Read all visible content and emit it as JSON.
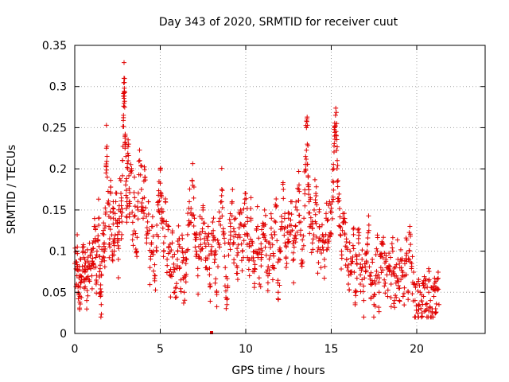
{
  "chart_data": {
    "type": "scatter",
    "title": "Day 343 of 2020, SRMTID for receiver cuut",
    "xlabel": "GPS time / hours",
    "ylabel": "SRMTID / TECUs",
    "xlim": [
      0,
      24
    ],
    "ylim": [
      0,
      0.35
    ],
    "xticks": [
      0,
      5,
      10,
      15,
      20
    ],
    "yticks": [
      0,
      0.05,
      0.1,
      0.15,
      0.2,
      0.25,
      0.3,
      0.35
    ],
    "xtick_labels": [
      "0",
      "5",
      "10",
      "15",
      "20"
    ],
    "ytick_labels": [
      "0",
      "0.05",
      "0.1",
      "0.15",
      "0.2",
      "0.25",
      "0.3",
      "0.35"
    ],
    "grid": true,
    "marker_color": "#e00000",
    "marker": "plus",
    "x_range_of_data": [
      0,
      21.3
    ],
    "series": [
      {
        "points": [
          [
            0.0,
            0.085
          ],
          [
            0.1,
            0.06
          ],
          [
            0.15,
            0.105
          ],
          [
            0.2,
            0.05
          ],
          [
            0.25,
            0.07
          ],
          [
            0.3,
            0.045
          ],
          [
            0.35,
            0.09
          ],
          [
            0.4,
            0.065
          ],
          [
            0.5,
            0.1
          ],
          [
            0.55,
            0.055
          ],
          [
            0.6,
            0.075
          ],
          [
            0.7,
            0.04
          ],
          [
            0.75,
            0.08
          ],
          [
            0.8,
            0.065
          ],
          [
            0.9,
            0.095
          ],
          [
            1.0,
            0.07
          ],
          [
            1.05,
            0.11
          ],
          [
            1.1,
            0.085
          ],
          [
            1.2,
            0.13
          ],
          [
            1.25,
            0.06
          ],
          [
            1.3,
            0.1
          ],
          [
            1.4,
            0.14
          ],
          [
            1.45,
            0.075
          ],
          [
            1.5,
            0.045
          ],
          [
            1.55,
            0.035
          ],
          [
            1.6,
            0.09
          ],
          [
            1.7,
            0.12
          ],
          [
            1.75,
            0.1
          ],
          [
            1.8,
            0.145
          ],
          [
            1.85,
            0.225
          ],
          [
            1.9,
            0.19
          ],
          [
            2.0,
            0.13
          ],
          [
            2.05,
            0.105
          ],
          [
            2.1,
            0.17
          ],
          [
            2.2,
            0.095
          ],
          [
            2.25,
            0.14
          ],
          [
            2.3,
            0.115
          ],
          [
            2.4,
            0.16
          ],
          [
            2.5,
            0.13
          ],
          [
            2.55,
            0.09
          ],
          [
            2.6,
            0.155
          ],
          [
            2.7,
            0.17
          ],
          [
            2.75,
            0.12
          ],
          [
            2.8,
            0.21
          ],
          [
            2.85,
            0.265
          ],
          [
            2.88,
            0.31
          ],
          [
            2.9,
            0.305
          ],
          [
            2.92,
            0.275
          ],
          [
            2.95,
            0.24
          ],
          [
            3.0,
            0.185
          ],
          [
            3.05,
            0.16
          ],
          [
            3.1,
            0.2
          ],
          [
            3.15,
            0.23
          ],
          [
            3.2,
            0.145
          ],
          [
            3.3,
            0.195
          ],
          [
            3.4,
            0.12
          ],
          [
            3.5,
            0.165
          ],
          [
            3.6,
            0.1
          ],
          [
            3.7,
            0.15
          ],
          [
            3.8,
            0.21
          ],
          [
            3.9,
            0.175
          ],
          [
            4.0,
            0.14
          ],
          [
            4.1,
            0.19
          ],
          [
            4.2,
            0.11
          ],
          [
            4.3,
            0.16
          ],
          [
            4.4,
            0.08
          ],
          [
            4.5,
            0.13
          ],
          [
            4.6,
            0.1
          ],
          [
            4.7,
            0.07
          ],
          [
            4.8,
            0.12
          ],
          [
            4.9,
            0.15
          ],
          [
            5.0,
            0.2
          ],
          [
            5.05,
            0.17
          ],
          [
            5.1,
            0.14
          ],
          [
            5.2,
            0.11
          ],
          [
            5.3,
            0.16
          ],
          [
            5.4,
            0.09
          ],
          [
            5.5,
            0.13
          ],
          [
            5.6,
            0.07
          ],
          [
            5.7,
            0.11
          ],
          [
            5.8,
            0.08
          ],
          [
            5.9,
            0.055
          ],
          [
            6.0,
            0.09
          ],
          [
            6.1,
            0.115
          ],
          [
            6.2,
            0.065
          ],
          [
            6.3,
            0.1
          ],
          [
            6.4,
            0.05
          ],
          [
            6.5,
            0.085
          ],
          [
            6.6,
            0.12
          ],
          [
            6.7,
            0.16
          ],
          [
            6.8,
            0.135
          ],
          [
            6.9,
            0.18
          ],
          [
            7.0,
            0.14
          ],
          [
            7.1,
            0.1
          ],
          [
            7.2,
            0.07
          ],
          [
            7.3,
            0.12
          ],
          [
            7.4,
            0.09
          ],
          [
            7.5,
            0.15
          ],
          [
            7.6,
            0.11
          ],
          [
            7.7,
            0.08
          ],
          [
            7.8,
            0.13
          ],
          [
            7.9,
            0.06
          ],
          [
            8.0,
            0.1
          ],
          [
            8.1,
            0.125
          ],
          [
            8.2,
            0.09
          ],
          [
            8.3,
            0.05
          ],
          [
            8.4,
            0.11
          ],
          [
            8.5,
            0.14
          ],
          [
            8.6,
            0.175
          ],
          [
            8.7,
            0.12
          ],
          [
            8.8,
            0.08
          ],
          [
            8.9,
            0.035
          ],
          [
            9.0,
            0.095
          ],
          [
            9.1,
            0.13
          ],
          [
            9.2,
            0.16
          ],
          [
            9.3,
            0.11
          ],
          [
            9.4,
            0.14
          ],
          [
            9.5,
            0.08
          ],
          [
            9.6,
            0.12
          ],
          [
            9.7,
            0.15
          ],
          [
            9.8,
            0.1
          ],
          [
            9.9,
            0.13
          ],
          [
            10.0,
            0.17
          ],
          [
            10.1,
            0.12
          ],
          [
            10.2,
            0.09
          ],
          [
            10.3,
            0.14
          ],
          [
            10.4,
            0.11
          ],
          [
            10.5,
            0.075
          ],
          [
            10.6,
            0.1
          ],
          [
            10.7,
            0.13
          ],
          [
            10.8,
            0.06
          ],
          [
            10.9,
            0.09
          ],
          [
            11.0,
            0.12
          ],
          [
            11.1,
            0.15
          ],
          [
            11.2,
            0.095
          ],
          [
            11.3,
            0.07
          ],
          [
            11.4,
            0.11
          ],
          [
            11.5,
            0.14
          ],
          [
            11.6,
            0.08
          ],
          [
            11.7,
            0.12
          ],
          [
            11.8,
            0.155
          ],
          [
            11.9,
            0.05
          ],
          [
            12.0,
            0.1
          ],
          [
            12.1,
            0.13
          ],
          [
            12.2,
            0.175
          ],
          [
            12.3,
            0.11
          ],
          [
            12.4,
            0.085
          ],
          [
            12.5,
            0.14
          ],
          [
            12.6,
            0.12
          ],
          [
            12.7,
            0.16
          ],
          [
            12.8,
            0.09
          ],
          [
            12.9,
            0.13
          ],
          [
            13.0,
            0.15
          ],
          [
            13.1,
            0.175
          ],
          [
            13.2,
            0.12
          ],
          [
            13.3,
            0.085
          ],
          [
            13.4,
            0.14
          ],
          [
            13.5,
            0.215
          ],
          [
            13.55,
            0.25
          ],
          [
            13.6,
            0.23
          ],
          [
            13.65,
            0.19
          ],
          [
            13.7,
            0.16
          ],
          [
            13.8,
            0.13
          ],
          [
            13.9,
            0.11
          ],
          [
            14.0,
            0.15
          ],
          [
            14.1,
            0.17
          ],
          [
            14.2,
            0.1
          ],
          [
            14.3,
            0.13
          ],
          [
            14.4,
            0.08
          ],
          [
            14.5,
            0.12
          ],
          [
            14.6,
            0.09
          ],
          [
            14.7,
            0.14
          ],
          [
            14.8,
            0.11
          ],
          [
            14.9,
            0.16
          ],
          [
            15.0,
            0.12
          ],
          [
            15.1,
            0.185
          ],
          [
            15.15,
            0.2
          ],
          [
            15.2,
            0.25
          ],
          [
            15.25,
            0.265
          ],
          [
            15.3,
            0.24
          ],
          [
            15.35,
            0.21
          ],
          [
            15.4,
            0.16
          ],
          [
            15.5,
            0.13
          ],
          [
            15.6,
            0.1
          ],
          [
            15.7,
            0.14
          ],
          [
            15.8,
            0.12
          ],
          [
            15.9,
            0.09
          ],
          [
            16.0,
            0.06
          ],
          [
            16.1,
            0.1
          ],
          [
            16.2,
            0.075
          ],
          [
            16.3,
            0.12
          ],
          [
            16.4,
            0.05
          ],
          [
            16.5,
            0.085
          ],
          [
            16.6,
            0.11
          ],
          [
            16.7,
            0.06
          ],
          [
            16.8,
            0.09
          ],
          [
            16.9,
            0.04
          ],
          [
            17.0,
            0.075
          ],
          [
            17.1,
            0.1
          ],
          [
            17.2,
            0.125
          ],
          [
            17.3,
            0.06
          ],
          [
            17.4,
            0.09
          ],
          [
            17.5,
            0.035
          ],
          [
            17.6,
            0.07
          ],
          [
            17.7,
            0.1
          ],
          [
            17.8,
            0.05
          ],
          [
            17.9,
            0.08
          ],
          [
            18.0,
            0.11
          ],
          [
            18.1,
            0.065
          ],
          [
            18.2,
            0.09
          ],
          [
            18.3,
            0.045
          ],
          [
            18.4,
            0.075
          ],
          [
            18.5,
            0.06
          ],
          [
            18.6,
            0.1
          ],
          [
            18.7,
            0.04
          ],
          [
            18.8,
            0.07
          ],
          [
            18.9,
            0.09
          ],
          [
            19.0,
            0.055
          ],
          [
            19.1,
            0.08
          ],
          [
            19.2,
            0.045
          ],
          [
            19.3,
            0.07
          ],
          [
            19.4,
            0.095
          ],
          [
            19.5,
            0.05
          ],
          [
            19.6,
            0.13
          ],
          [
            19.7,
            0.085
          ],
          [
            19.8,
            0.06
          ],
          [
            19.9,
            0.04
          ],
          [
            20.0,
            0.06
          ],
          [
            20.1,
            0.035
          ],
          [
            20.2,
            0.05
          ],
          [
            20.3,
            0.025
          ],
          [
            20.4,
            0.045
          ],
          [
            20.5,
            0.06
          ],
          [
            20.6,
            0.03
          ],
          [
            20.7,
            0.05
          ],
          [
            20.8,
            0.04
          ],
          [
            20.9,
            0.025
          ],
          [
            21.0,
            0.045
          ],
          [
            21.1,
            0.03
          ],
          [
            21.2,
            0.055
          ],
          [
            21.3,
            0.035
          ]
        ]
      }
    ],
    "outlier": [
      8.0,
      0.0
    ]
  }
}
